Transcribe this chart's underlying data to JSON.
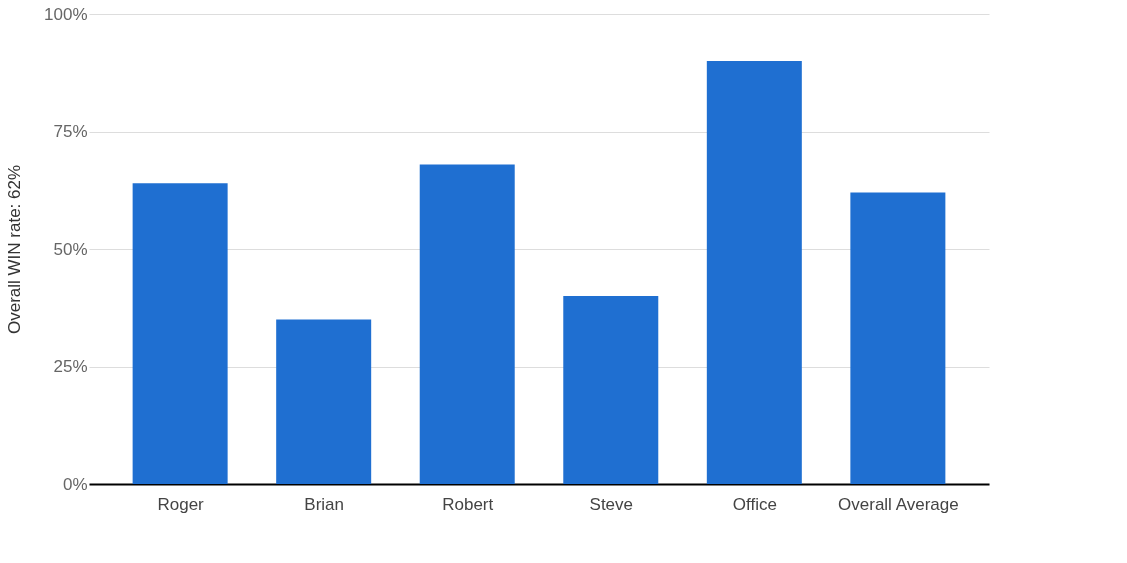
{
  "chart_data": {
    "type": "bar",
    "ylabel": "Overall WIN rate: 62%",
    "categories": [
      "Roger",
      "Brian",
      "Robert",
      "Steve",
      "Office",
      "Overall Average"
    ],
    "series": [
      {
        "color": "#1f6fd1",
        "values": [
          64,
          35,
          68,
          40,
          90,
          62
        ]
      }
    ],
    "ylim": [
      0,
      100
    ],
    "yticks": [
      {
        "value": 0,
        "label": "0%"
      },
      {
        "value": 25,
        "label": "25%"
      },
      {
        "value": 50,
        "label": "50%"
      },
      {
        "value": 75,
        "label": "75%"
      },
      {
        "value": 100,
        "label": "100%"
      }
    ],
    "grid": "y"
  }
}
